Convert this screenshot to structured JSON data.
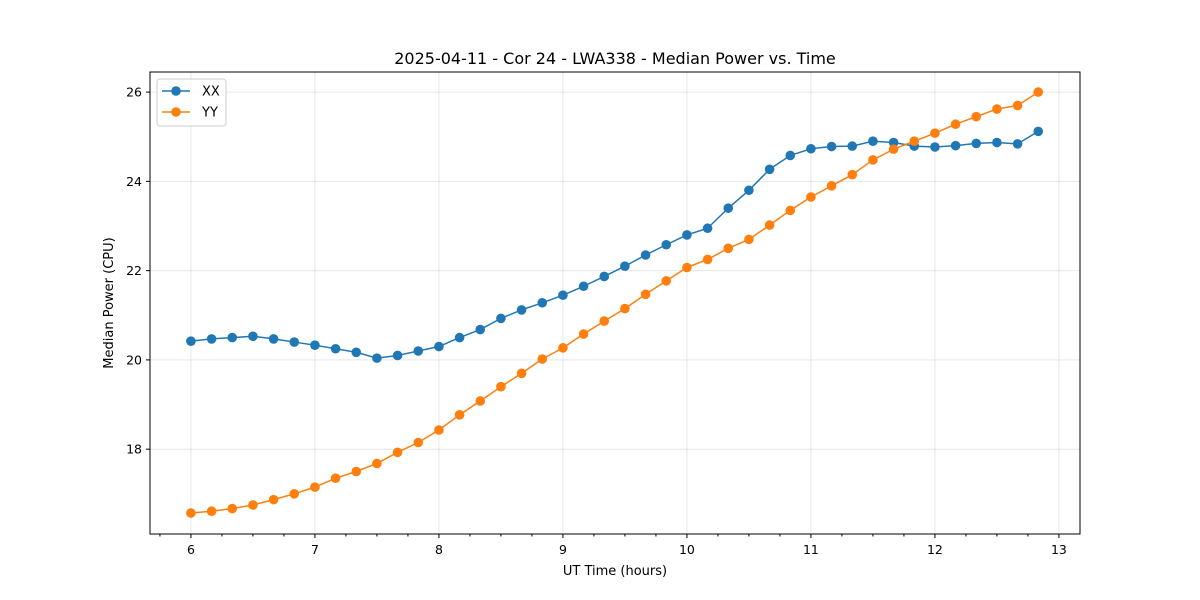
{
  "chart_data": {
    "type": "line",
    "title": "2025-04-11 - Cor 24 - LWA338 - Median Power vs. Time",
    "xlabel": "UT Time (hours)",
    "ylabel": "Median Power (CPU)",
    "xlim": [
      5.67,
      13.17
    ],
    "ylim": [
      16.1,
      26.45
    ],
    "xticks": [
      6,
      7,
      8,
      9,
      10,
      11,
      12,
      13
    ],
    "xtick_labels": [
      "6",
      "7",
      "8",
      "9",
      "10",
      "11",
      "12",
      "13"
    ],
    "yticks": [
      18,
      20,
      22,
      24,
      26
    ],
    "ytick_labels": [
      "18",
      "20",
      "22",
      "24",
      "26"
    ],
    "grid": true,
    "legend_position": "upper-left",
    "x": [
      6.0,
      6.1667,
      6.3333,
      6.5,
      6.6667,
      6.8333,
      7.0,
      7.1667,
      7.3333,
      7.5,
      7.6667,
      7.8333,
      8.0,
      8.1667,
      8.3333,
      8.5,
      8.6667,
      8.8333,
      9.0,
      9.1667,
      9.3333,
      9.5,
      9.6667,
      9.8333,
      10.0,
      10.1667,
      10.3333,
      10.5,
      10.6667,
      10.8333,
      11.0,
      11.1667,
      11.3333,
      11.5,
      11.6667,
      11.8333,
      12.0,
      12.1667,
      12.3333,
      12.5,
      12.6667,
      12.8333
    ],
    "series": [
      {
        "name": "XX",
        "color": "#1f77b4",
        "values": [
          20.42,
          20.47,
          20.5,
          20.53,
          20.47,
          20.4,
          20.33,
          20.25,
          20.17,
          20.04,
          20.1,
          20.2,
          20.3,
          20.5,
          20.68,
          20.93,
          21.12,
          21.28,
          21.45,
          21.65,
          21.87,
          22.1,
          22.35,
          22.58,
          22.8,
          22.95,
          23.4,
          23.8,
          24.27,
          24.58,
          24.73,
          24.78,
          24.79,
          24.9,
          24.87,
          24.79,
          24.77,
          24.8,
          24.85,
          24.87,
          24.84,
          25.12
        ]
      },
      {
        "name": "YY",
        "color": "#ff7f0e",
        "values": [
          16.57,
          16.61,
          16.67,
          16.75,
          16.87,
          17.0,
          17.15,
          17.35,
          17.5,
          17.68,
          17.93,
          18.15,
          18.43,
          18.77,
          19.08,
          19.4,
          19.7,
          20.02,
          20.27,
          20.58,
          20.87,
          21.15,
          21.47,
          21.77,
          22.07,
          22.25,
          22.5,
          22.7,
          23.02,
          23.35,
          23.65,
          23.9,
          24.15,
          24.48,
          24.72,
          24.9,
          25.08,
          25.28,
          25.45,
          25.62,
          25.7,
          26.0
        ]
      }
    ]
  }
}
